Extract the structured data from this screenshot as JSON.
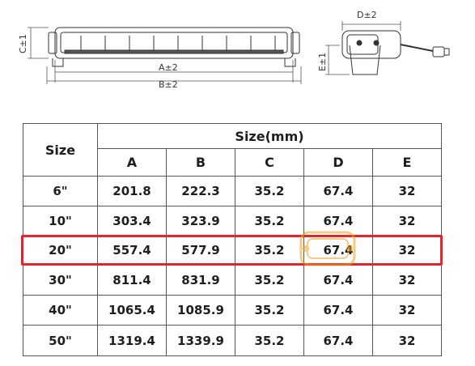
{
  "drawing": {
    "dim_c": "C±1",
    "dim_a": "A±2",
    "dim_b": "B±2",
    "dim_d": "D±2",
    "dim_e": "E±1"
  },
  "table": {
    "size_header": "Size",
    "group_header": "Size(mm)",
    "columns": [
      "A",
      "B",
      "C",
      "D",
      "E"
    ],
    "rows": [
      {
        "size": "6\"",
        "values": [
          "201.8",
          "222.3",
          "35.2",
          "67.4",
          "32"
        ]
      },
      {
        "size": "10\"",
        "values": [
          "303.4",
          "323.9",
          "35.2",
          "67.4",
          "32"
        ]
      },
      {
        "size": "20\"",
        "values": [
          "557.4",
          "577.9",
          "35.2",
          "67.4",
          "32"
        ]
      },
      {
        "size": "30\"",
        "values": [
          "811.4",
          "831.9",
          "35.2",
          "67.4",
          "32"
        ]
      },
      {
        "size": "40\"",
        "values": [
          "1065.4",
          "1085.9",
          "35.2",
          "67.4",
          "32"
        ]
      },
      {
        "size": "50\"",
        "values": [
          "1319.4",
          "1339.9",
          "35.2",
          "67.4",
          "32"
        ]
      }
    ],
    "highlighted_row": "20\""
  },
  "colors": {
    "highlight": "#e0262c",
    "watermark": "#f0a020"
  },
  "watermark_icon": "kvadro-logo-icon"
}
